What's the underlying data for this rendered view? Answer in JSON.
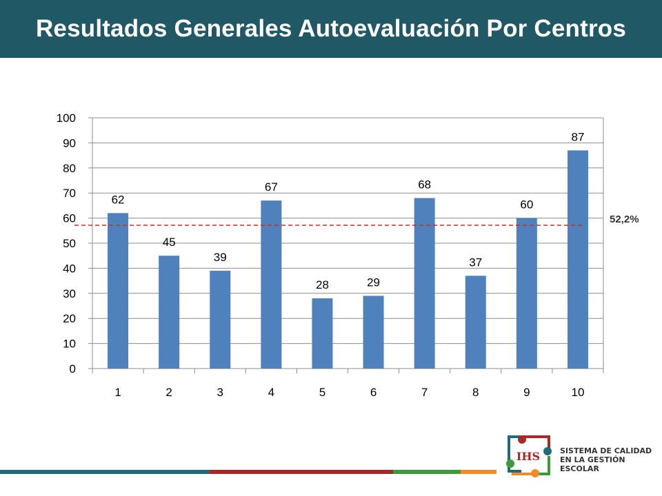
{
  "header": {
    "title": "Resultados Generales Autoevaluación Por Centros"
  },
  "chart_data": {
    "type": "bar",
    "categories": [
      "1",
      "2",
      "3",
      "4",
      "5",
      "6",
      "7",
      "8",
      "9",
      "10"
    ],
    "values": [
      62,
      45,
      39,
      67,
      28,
      29,
      68,
      37,
      60,
      87
    ],
    "ylim": [
      0,
      100
    ],
    "yticks": [
      0,
      10,
      20,
      30,
      40,
      50,
      60,
      70,
      80,
      90,
      100
    ],
    "grid": true,
    "bar_color": "#4f81bd",
    "reference_line": {
      "label": "52,2%",
      "color": "#e02020"
    }
  },
  "footer": {
    "colors": [
      "#1f6b7a",
      "#a82727",
      "#3f9a3a",
      "#f28c28"
    ]
  },
  "logo": {
    "line1": "SISTEMA DE CALIDAD",
    "line2": "EN LA GESTIÓN",
    "line3": "ESCOLAR",
    "monogram": "IHS"
  }
}
